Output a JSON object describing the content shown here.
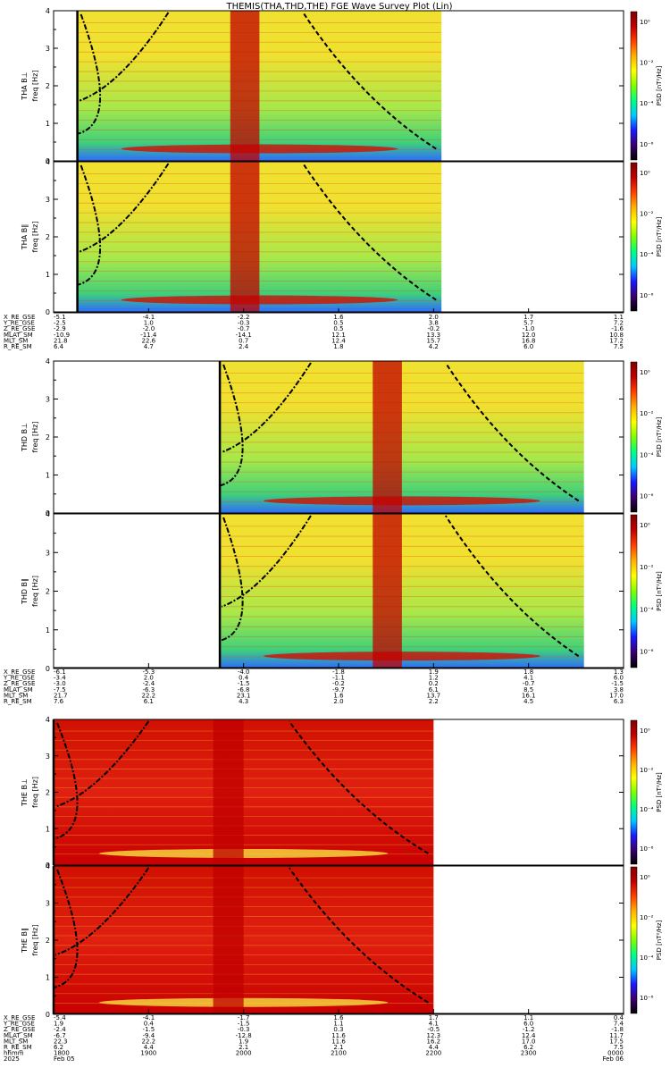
{
  "title": "THEMIS(THA,THD,THE) FGE Wave Survey Plot (Lin)",
  "colors": {
    "cb_stops": [
      "#000000",
      "#3a0070",
      "#1a1aff",
      "#00c8ff",
      "#00ff80",
      "#80ff00",
      "#ffff00",
      "#ffb000",
      "#ff4000",
      "#c00000",
      "#800000"
    ],
    "dash_line": "#000000",
    "bg_low": "#2f6bff",
    "bg_mid": "#a6e84a",
    "bg_high": "#f0e030"
  },
  "chart_data": {
    "type": "heatmap",
    "probes": [
      {
        "id": "THA",
        "panels": [
          {
            "ylabel_top": "THA B⊥",
            "ylabel_bot": "freq [Hz]",
            "yticks": [
              "0",
              "1",
              "2",
              "3",
              "4"
            ],
            "ylim": [
              0,
              4
            ],
            "cb_label": "PSD [nT²/Hz]",
            "cb_ticks": [
              "10⁰",
              "10⁻²",
              "10⁻⁴",
              "10⁻⁶"
            ],
            "data_start": "1815",
            "data_end": "2205"
          },
          {
            "ylabel_top": "THA B∥",
            "ylabel_bot": "freq [Hz]",
            "yticks": [
              "0",
              "1",
              "2",
              "3",
              "4"
            ],
            "ylim": [
              0,
              4
            ],
            "cb_label": "PSD [nT²/Hz]",
            "cb_ticks": [
              "10⁰",
              "10⁻²",
              "10⁻⁴",
              "10⁻⁶"
            ],
            "data_start": "1815",
            "data_end": "2205"
          }
        ],
        "ephem": {
          "labels": [
            "X_RE_GSE",
            "Y_RE_GSE",
            "Z_RE_GSE",
            "MLAT_SM",
            "MLT_SM",
            "R_RE_SM"
          ],
          "columns": [
            [
              "-5.1",
              "-2.5",
              "-2.9",
              "-10.9",
              "21.8",
              "6.4"
            ],
            [
              "-4.1",
              "1.0",
              "-2.0",
              "-11.4",
              "22.6",
              "4.7"
            ],
            [
              "-2.2",
              "-0.3",
              "-0.7",
              "-14.1",
              "0.7",
              "2.4"
            ],
            [
              "1.6",
              "0.5",
              "0.5",
              "12.1",
              "12.4",
              "1.8"
            ],
            [
              "2.0",
              "3.8",
              "-0.2",
              "13.3",
              "15.7",
              "4.2"
            ],
            [
              "1.7",
              "5.7",
              "-1.0",
              "12.0",
              "16.8",
              "6.0"
            ],
            [
              "1.1",
              "7.2",
              "-1.6",
              "10.8",
              "17.2",
              "7.5"
            ]
          ]
        }
      },
      {
        "id": "THD",
        "panels": [
          {
            "ylabel_top": "THD B⊥",
            "ylabel_bot": "freq [Hz]",
            "yticks": [
              "0",
              "1",
              "2",
              "3",
              "4"
            ],
            "ylim": [
              0,
              4
            ],
            "cb_label": "PSD [nT²/Hz]",
            "cb_ticks": [
              "10⁰",
              "10⁻²",
              "10⁻⁴",
              "10⁻⁶"
            ],
            "data_start": "1945",
            "data_end": "2335"
          },
          {
            "ylabel_top": "THD B∥",
            "ylabel_bot": "freq [Hz]",
            "yticks": [
              "0",
              "1",
              "2",
              "3",
              "4"
            ],
            "ylim": [
              0,
              4
            ],
            "cb_label": "PSD [nT²/Hz]",
            "cb_ticks": [
              "10⁰",
              "10⁻²",
              "10⁻⁴",
              "10⁻⁶"
            ],
            "data_start": "1945",
            "data_end": "2335"
          }
        ],
        "ephem": {
          "labels": [
            "X_RE_GSE",
            "Y_RE_GSE",
            "Z_RE_GSE",
            "MLAT_SM",
            "MLT_SM",
            "R_RE_SM"
          ],
          "columns": [
            [
              "-6.1",
              "-3.4",
              "-3.0",
              "-7.5",
              "21.7",
              "7.6"
            ],
            [
              "-5.3",
              "2.0",
              "-2.4",
              "-6.3",
              "22.2",
              "6.1"
            ],
            [
              "-4.0",
              "0.4",
              "-1.5",
              "-6.8",
              "23.1",
              "4.3"
            ],
            [
              "-1.8",
              "-1.1",
              "-0.2",
              "-9.7",
              "1.6",
              "2.0"
            ],
            [
              "1.9",
              "1.2",
              "0.2",
              "6.1",
              "13.7",
              "2.2"
            ],
            [
              "1.8",
              "4.1",
              "-0.7",
              "8.5",
              "16.1",
              "4.5"
            ],
            [
              "1.3",
              "6.0",
              "-1.5",
              "3.8",
              "17.0",
              "6.3"
            ]
          ]
        }
      },
      {
        "id": "THE",
        "panels": [
          {
            "ylabel_top": "THE B⊥",
            "ylabel_bot": "freq [Hz]",
            "yticks": [
              "0",
              "1",
              "2",
              "3",
              "4"
            ],
            "ylim": [
              0,
              4
            ],
            "cb_label": "PSD [nT²/Hz]",
            "cb_ticks": [
              "10⁰",
              "10⁻²",
              "10⁻⁴",
              "10⁻⁶"
            ],
            "data_start": "1800",
            "data_end": "2200"
          },
          {
            "ylabel_top": "THE B∥",
            "ylabel_bot": "freq [Hz]",
            "yticks": [
              "0",
              "1",
              "2",
              "3",
              "4"
            ],
            "ylim": [
              0,
              4
            ],
            "cb_label": "PSD [nT²/Hz]",
            "cb_ticks": [
              "10⁰",
              "10⁻²",
              "10⁻⁴",
              "10⁻⁶"
            ],
            "data_start": "1800",
            "data_end": "2200"
          }
        ],
        "ephem": {
          "labels": [
            "X_RE_GSE",
            "Y_RE_GSE",
            "Z_RE_GSE",
            "MLAT_SM",
            "MLT_SM",
            "R_RE_SM",
            "hhmm",
            "2025"
          ],
          "columns": [
            [
              "-5.4",
              "1.9",
              "-2.4",
              "-6.7",
              "22.3",
              "6.2",
              "1800",
              "Feb 05"
            ],
            [
              "-4.1",
              "0.4",
              "-1.5",
              "-9.4",
              "22.2",
              "4.4",
              "1900",
              ""
            ],
            [
              "-1.7",
              "-1.5",
              "-0.3",
              "-12.8",
              "1.9",
              "2.1",
              "2000",
              ""
            ],
            [
              "1.6",
              "1.1",
              "0.3",
              "11.6",
              "11.6",
              "2.1",
              "2100",
              ""
            ],
            [
              "1.7",
              "4.1",
              "-0.5",
              "12.3",
              "16.2",
              "4.4",
              "2200",
              ""
            ],
            [
              "1.1",
              "6.0",
              "-1.2",
              "12.4",
              "17.0",
              "6.2",
              "2300",
              ""
            ],
            [
              "0.4",
              "7.4",
              "-1.8",
              "11.7",
              "17.5",
              "7.5",
              "0000",
              "Feb 06"
            ]
          ]
        }
      }
    ]
  }
}
